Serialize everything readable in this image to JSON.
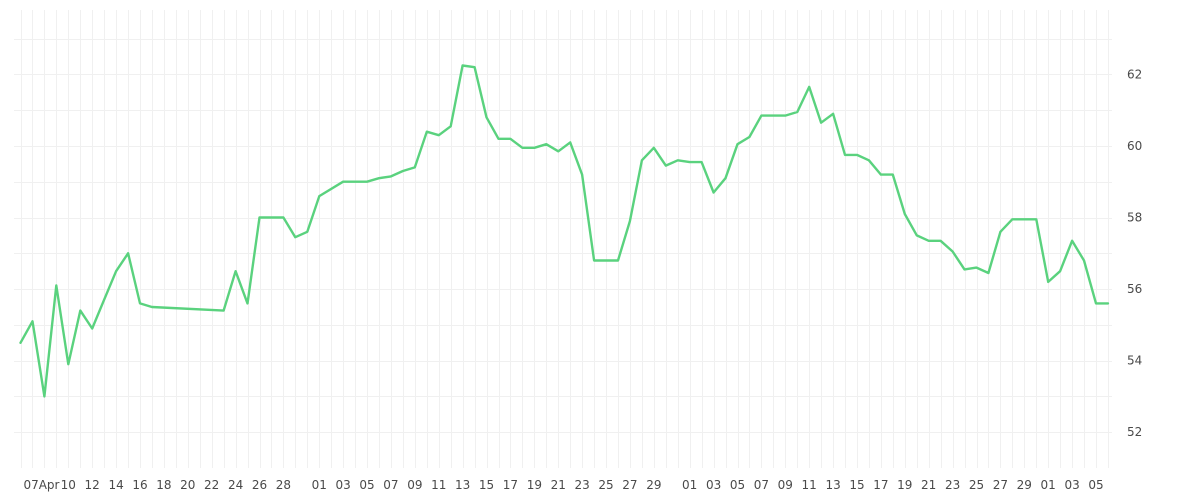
{
  "chart_data": {
    "type": "line",
    "title": "",
    "xlabel": "",
    "ylabel": "",
    "ylim": [
      51.0,
      63.8
    ],
    "y_ticks": [
      52,
      54,
      56,
      58,
      60,
      62
    ],
    "grid": true,
    "legend": "none",
    "colors": {
      "line": "#5ad27e",
      "grid": "#f0f0f0",
      "text": "#4a4a4a",
      "background": "#ffffff"
    },
    "x_tick_labels": [
      "07Apr",
      "10",
      "12",
      "14",
      "16",
      "18",
      "20",
      "22",
      "24",
      "26",
      "28",
      "01",
      "03",
      "05",
      "07",
      "09",
      "11",
      "13",
      "15",
      "17",
      "19",
      "21",
      "23",
      "25",
      "27",
      "29",
      "01",
      "03",
      "05",
      "07",
      "09",
      "11",
      "13",
      "15",
      "17",
      "19",
      "21",
      "23",
      "25",
      "27",
      "29",
      "01",
      "03",
      "05"
    ],
    "x_tick_dates": [
      "2016-04-07",
      "2016-04-10",
      "2016-04-12",
      "2016-04-14",
      "2016-04-16",
      "2016-04-18",
      "2016-04-20",
      "2016-04-22",
      "2016-04-24",
      "2016-04-26",
      "2016-04-28",
      "2016-05-01",
      "2016-05-03",
      "2016-05-05",
      "2016-05-07",
      "2016-05-09",
      "2016-05-11",
      "2016-05-13",
      "2016-05-15",
      "2016-05-17",
      "2016-05-19",
      "2016-05-21",
      "2016-05-23",
      "2016-05-25",
      "2016-05-27",
      "2016-05-29",
      "2016-06-01",
      "2016-06-03",
      "2016-06-05",
      "2016-06-07",
      "2016-06-09",
      "2016-06-11",
      "2016-06-13",
      "2016-06-15",
      "2016-06-17",
      "2016-06-19",
      "2016-06-21",
      "2016-06-23",
      "2016-06-25",
      "2016-06-27",
      "2016-06-29",
      "2016-07-01",
      "2016-07-03",
      "2016-07-05"
    ],
    "series": [
      {
        "x": [
          "2016-04-06",
          "2016-04-07",
          "2016-04-08",
          "2016-04-09",
          "2016-04-10",
          "2016-04-11",
          "2016-04-12",
          "2016-04-13",
          "2016-04-14",
          "2016-04-15",
          "2016-04-16",
          "2016-04-17",
          "2016-04-23",
          "2016-04-24",
          "2016-04-25",
          "2016-04-26",
          "2016-04-27",
          "2016-04-28",
          "2016-04-29",
          "2016-04-30",
          "2016-05-01",
          "2016-05-03",
          "2016-05-04",
          "2016-05-05",
          "2016-05-06",
          "2016-05-07",
          "2016-05-08",
          "2016-05-09",
          "2016-05-10",
          "2016-05-11",
          "2016-05-12",
          "2016-05-13",
          "2016-05-14",
          "2016-05-15",
          "2016-05-16",
          "2016-05-17",
          "2016-05-18",
          "2016-05-19",
          "2016-05-20",
          "2016-05-21",
          "2016-05-22",
          "2016-05-23",
          "2016-05-24",
          "2016-05-25",
          "2016-05-26",
          "2016-05-27",
          "2016-05-28",
          "2016-05-29",
          "2016-05-30",
          "2016-05-31",
          "2016-06-01",
          "2016-06-02",
          "2016-06-03",
          "2016-06-04",
          "2016-06-05",
          "2016-06-06",
          "2016-06-07",
          "2016-06-08",
          "2016-06-09",
          "2016-06-10",
          "2016-06-11",
          "2016-06-12",
          "2016-06-13",
          "2016-06-14",
          "2016-06-15",
          "2016-06-16",
          "2016-06-17",
          "2016-06-18",
          "2016-06-19",
          "2016-06-20",
          "2016-06-21",
          "2016-06-22",
          "2016-06-23",
          "2016-06-24",
          "2016-06-25",
          "2016-06-26",
          "2016-06-27",
          "2016-06-28",
          "2016-06-29",
          "2016-06-30",
          "2016-07-01",
          "2016-07-02",
          "2016-07-03",
          "2016-07-04",
          "2016-07-05",
          "2016-07-06"
        ],
        "values": [
          54.5,
          55.1,
          53.0,
          56.1,
          53.9,
          55.4,
          54.9,
          55.7,
          56.5,
          57.0,
          55.6,
          55.5,
          55.4,
          56.5,
          55.6,
          58.0,
          58.0,
          58.0,
          57.45,
          57.6,
          58.6,
          59.0,
          59.0,
          59.0,
          59.1,
          59.15,
          59.3,
          59.4,
          60.4,
          60.3,
          60.55,
          62.25,
          62.2,
          60.8,
          60.2,
          60.2,
          59.95,
          59.95,
          60.05,
          59.85,
          60.1,
          59.2,
          56.8,
          56.8,
          56.8,
          57.9,
          59.6,
          59.95,
          59.45,
          59.6,
          59.55,
          59.55,
          58.7,
          59.1,
          60.05,
          60.25,
          60.85,
          60.85,
          60.85,
          60.95,
          61.65,
          60.65,
          60.9,
          59.75,
          59.75,
          59.6,
          59.2,
          59.2,
          58.1,
          57.5,
          57.35,
          57.35,
          57.05,
          56.55,
          56.6,
          56.45,
          57.6,
          57.95,
          57.95,
          57.95,
          56.2,
          56.5,
          57.35,
          56.8,
          55.6,
          55.6
        ]
      }
    ]
  }
}
